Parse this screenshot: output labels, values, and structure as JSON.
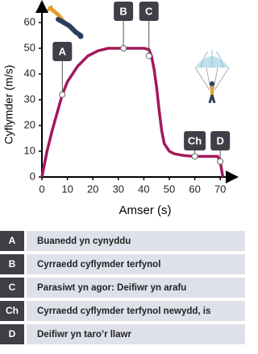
{
  "chart_data": {
    "type": "line",
    "x_label": "Amser (s)",
    "y_label": "Cyflymder (m/s)",
    "series": [
      {
        "color": "#a3195b",
        "x": [
          0,
          2,
          4,
          6,
          8,
          10,
          14,
          18,
          22,
          26,
          32,
          40,
          42,
          43,
          44,
          45,
          46,
          47,
          48,
          50,
          52,
          56,
          60,
          66,
          69,
          70,
          70.5,
          71
        ],
        "values": [
          0,
          10,
          18,
          25,
          32,
          37,
          43,
          47,
          49,
          50,
          50,
          50,
          49.5,
          47,
          42,
          35,
          26,
          18,
          13,
          10,
          9,
          8.3,
          8,
          8,
          8,
          6,
          3,
          0
        ]
      }
    ],
    "annotations": [
      {
        "label": "A",
        "x": 8,
        "y": 32
      },
      {
        "label": "B",
        "x": 32,
        "y": 50
      },
      {
        "label": "C",
        "x": 42,
        "y": 47
      },
      {
        "label": "Ch",
        "x": 60,
        "y": 8
      },
      {
        "label": "D",
        "x": 70,
        "y": 6
      }
    ],
    "xlim": [
      0,
      75
    ],
    "ylim": [
      0,
      66
    ],
    "xticks": [
      0,
      10,
      20,
      30,
      40,
      50,
      60,
      70
    ],
    "yticks": [
      0,
      10,
      20,
      30,
      40,
      50,
      60
    ]
  },
  "key_table": [
    {
      "key": "A",
      "text": "Buanedd yn cynyddu"
    },
    {
      "key": "B",
      "text": "Cyrraedd cyflymder terfynol"
    },
    {
      "key": "C",
      "text": "Parasiwt yn agor: Deifiwr yn arafu"
    },
    {
      "key": "Ch",
      "text": "Cyrraedd cyflymder terfynol newydd, is"
    },
    {
      "key": "D",
      "text": "Deifiwr yn taro’r llawr"
    }
  ]
}
